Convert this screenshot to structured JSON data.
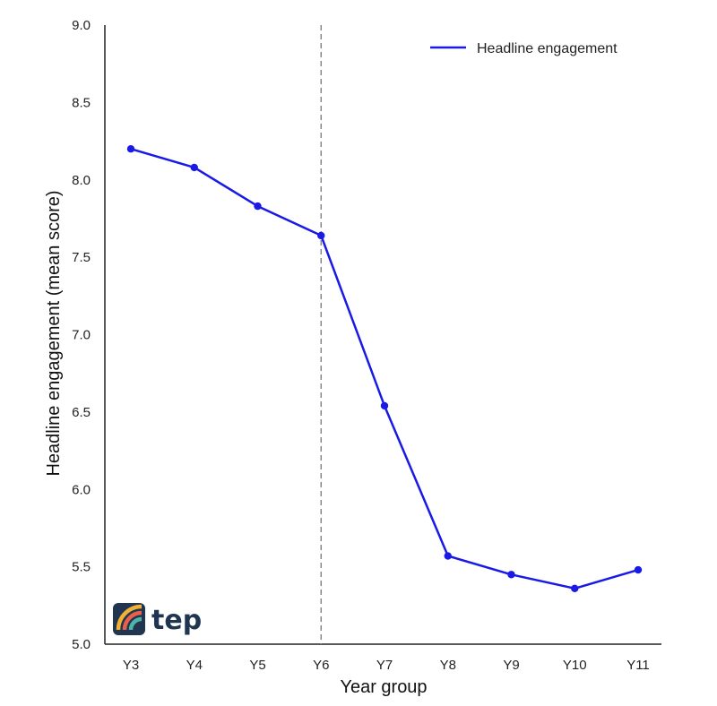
{
  "chart_data": {
    "type": "line",
    "categories": [
      "Y3",
      "Y4",
      "Y5",
      "Y6",
      "Y7",
      "Y8",
      "Y9",
      "Y10",
      "Y11"
    ],
    "series": [
      {
        "name": "Headline engagement",
        "values": [
          8.2,
          8.08,
          7.83,
          7.64,
          6.54,
          5.57,
          5.45,
          5.36,
          5.48
        ],
        "color": "#1a1ae6"
      }
    ],
    "title": "",
    "xlabel": "Year group",
    "ylabel": "Headline engagement (mean score)",
    "ylim": [
      5.0,
      9.0
    ],
    "yticks": [
      "5.0",
      "5.5",
      "6.0",
      "6.5",
      "7.0",
      "7.5",
      "8.0",
      "8.5",
      "9.0"
    ],
    "vline_category": "Y6",
    "vline_color": "#808080",
    "grid": false,
    "legend_position": "top-right"
  },
  "logo": {
    "text": "tep",
    "icon": "rainbow-logo-icon",
    "colors": [
      "#1f3550",
      "#f2b134",
      "#e8604c",
      "#4fb3a9"
    ]
  }
}
